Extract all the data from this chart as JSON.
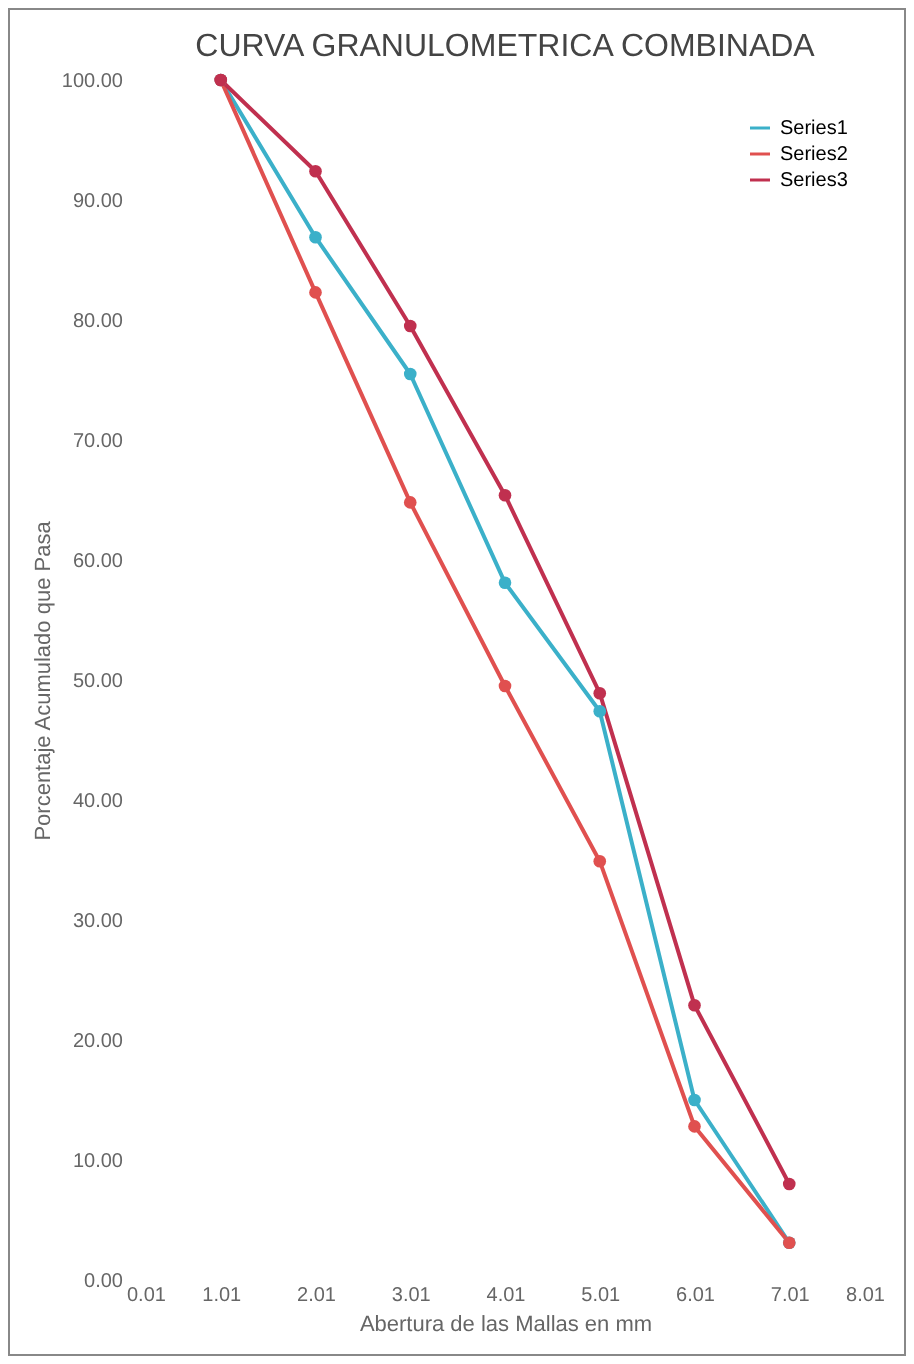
{
  "chart_data": {
    "type": "line",
    "title": "CURVA GRANULOMETRICA COMBINADA",
    "xlabel": "Abertura de las Mallas en mm",
    "ylabel": "Porcentaje Acumulado que Pasa",
    "x": [
      1.01,
      2.01,
      3.01,
      4.01,
      5.01,
      6.01,
      7.01
    ],
    "series": [
      {
        "name": "Series1",
        "color": "#3bb0c9",
        "values": [
          100,
          86.9,
          75.5,
          58.1,
          47.4,
          15.0,
          3.1
        ]
      },
      {
        "name": "Series2",
        "color": "#e0504f",
        "values": [
          100,
          82.3,
          64.8,
          49.5,
          34.9,
          12.8,
          3.1
        ]
      },
      {
        "name": "Series3",
        "color": "#c0304f",
        "values": [
          100,
          92.4,
          79.5,
          65.4,
          48.9,
          22.9,
          8.0
        ]
      }
    ],
    "xlim": [
      0.01,
      8.01
    ],
    "xticks": [
      0.01,
      1.01,
      2.01,
      3.01,
      4.01,
      5.01,
      6.01,
      7.01,
      8.01
    ],
    "ylim": [
      0,
      100
    ],
    "yticks": [
      {
        "value": 0,
        "label": "0.00"
      },
      {
        "value": 10,
        "label": "10.00"
      },
      {
        "value": 20,
        "label": "20.00"
      },
      {
        "value": 30,
        "label": "30.00"
      },
      {
        "value": 40,
        "label": "40.00"
      },
      {
        "value": 50,
        "label": "50.00"
      },
      {
        "value": 60,
        "label": "60.00"
      },
      {
        "value": 70,
        "label": "70.00"
      },
      {
        "value": 80,
        "label": "80.00"
      },
      {
        "value": 90,
        "label": "90.00"
      },
      {
        "value": 100,
        "label": "100.00"
      }
    ],
    "marker": "circle",
    "legend": "top right"
  }
}
